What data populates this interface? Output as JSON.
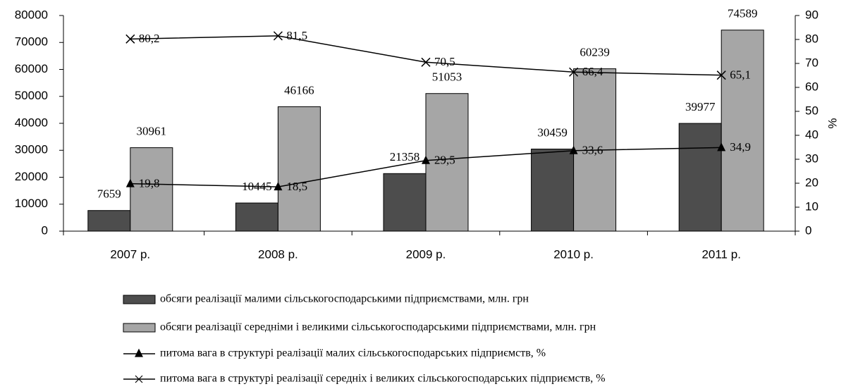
{
  "chart_data": {
    "type": "bar",
    "categories": [
      "2007 р.",
      "2008 р.",
      "2009 р.",
      "2010 р.",
      "2011 р."
    ],
    "ylim": [
      0,
      80000
    ],
    "yticks": [
      0,
      10000,
      20000,
      30000,
      40000,
      50000,
      60000,
      70000,
      80000
    ],
    "y2lim": [
      0,
      90
    ],
    "y2ticks": [
      0,
      10,
      20,
      30,
      40,
      50,
      60,
      70,
      80,
      90
    ],
    "y2label": "%",
    "series": [
      {
        "name": "обсяги реалізації малими сільськогосподарськими підприємствами, млн. грн",
        "type": "bar",
        "color": "#4d4d4d",
        "values": [
          7659,
          10445,
          21358,
          30459,
          39977
        ]
      },
      {
        "name": "обсяги реалізації середніми і великими сільськогосподарськими підприємствами, млн. грн",
        "type": "bar",
        "color": "#a6a6a6",
        "values": [
          30961,
          46166,
          51053,
          60239,
          74589
        ]
      },
      {
        "name": "питома вага в структурі реалізації малих сільськогосподарських підприємств, %",
        "type": "line",
        "marker": "triangle",
        "axis": "y2",
        "color": "#000000",
        "values": [
          19.8,
          18.5,
          29.5,
          33.6,
          34.9
        ],
        "value_labels": [
          "19,8",
          "18,5",
          "29,5",
          "33,6",
          "34,9"
        ]
      },
      {
        "name": "питома вага в структурі реалізації середніх і великих сільськогосподарських підприємств, %",
        "type": "line",
        "marker": "x",
        "axis": "y2",
        "color": "#000000",
        "values": [
          80.2,
          81.5,
          70.5,
          66.4,
          65.1
        ],
        "value_labels": [
          "80,2",
          "81,5",
          "70,5",
          "66,4",
          "65,1"
        ]
      }
    ]
  }
}
